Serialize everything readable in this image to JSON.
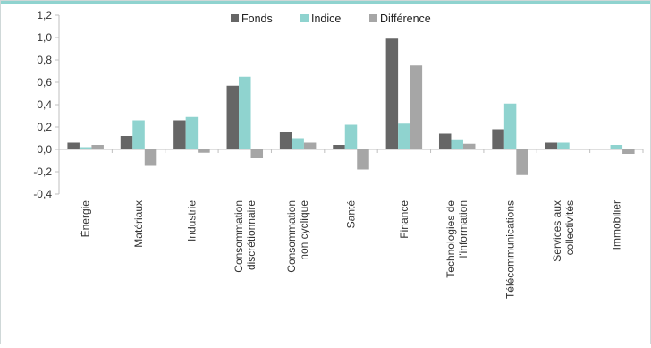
{
  "chart_data": {
    "type": "bar",
    "categories": [
      "Énergie",
      "Matériaux",
      "Industrie",
      "Consommation discrétionnaire",
      "Consommation non cyclique",
      "Santé",
      "Finance",
      "Technologies de l'information",
      "Télécommunications",
      "Services aux collectivités",
      "Immobilier"
    ],
    "category_lines": [
      [
        "Énergie"
      ],
      [
        "Matériaux"
      ],
      [
        "Industrie"
      ],
      [
        "Consommation",
        "discrétionnaire"
      ],
      [
        "Consommation",
        "non cyclique"
      ],
      [
        "Santé"
      ],
      [
        "Finance"
      ],
      [
        "Technologies de",
        "l'information"
      ],
      [
        "Télécommunications"
      ],
      [
        "Services aux",
        "collectivités"
      ],
      [
        "Immobilier"
      ]
    ],
    "series": [
      {
        "name": "Fonds",
        "color": "#666666",
        "values": [
          0.06,
          0.12,
          0.26,
          0.57,
          0.16,
          0.04,
          0.99,
          0.14,
          0.18,
          0.06,
          0.0
        ]
      },
      {
        "name": "Indice",
        "color": "#8fd3cf",
        "values": [
          0.02,
          0.26,
          0.29,
          0.65,
          0.1,
          0.22,
          0.23,
          0.09,
          0.41,
          0.06,
          0.04
        ]
      },
      {
        "name": "Différence",
        "color": "#a6a6a6",
        "values": [
          0.04,
          -0.14,
          -0.03,
          -0.08,
          0.06,
          -0.18,
          0.75,
          0.05,
          -0.23,
          0.0,
          -0.04
        ]
      }
    ],
    "ylim": [
      -0.4,
      1.2
    ],
    "yticks": [
      -0.4,
      -0.2,
      0.0,
      0.2,
      0.4,
      0.6,
      0.8,
      1.0,
      1.2
    ],
    "ytick_labels": [
      "-0,4",
      "-0,2",
      "0,0",
      "0,2",
      "0,4",
      "0,6",
      "0,8",
      "1,0",
      "1,2"
    ],
    "legend_position": "top-center",
    "grid": false
  }
}
